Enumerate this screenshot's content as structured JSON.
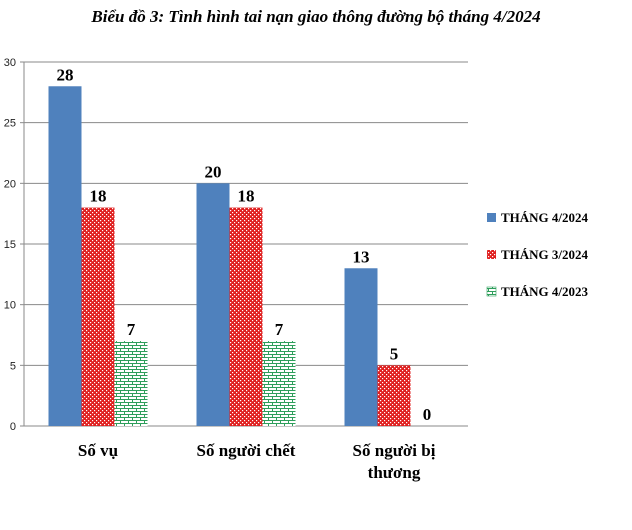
{
  "chart_data": {
    "type": "bar",
    "title": "Biểu đồ 3: Tình hình tai nạn giao thông đường bộ tháng 4/2024",
    "categories": [
      [
        "Số vụ"
      ],
      [
        "Số người chết"
      ],
      [
        "Số người bị",
        "thương"
      ]
    ],
    "series": [
      {
        "name": "THÁNG 4/2024",
        "values": [
          28,
          20,
          13
        ],
        "color": "#4F81BD",
        "pattern": "solid"
      },
      {
        "name": "THÁNG 3/2024",
        "values": [
          18,
          18,
          5
        ],
        "color": "#E02020",
        "pattern": "dots"
      },
      {
        "name": "THÁNG 4/2023",
        "values": [
          7,
          7,
          0
        ],
        "color": "#2E9E5B",
        "pattern": "bricks"
      }
    ],
    "ylim": [
      0,
      30
    ],
    "yticks": [
      0,
      5,
      10,
      15,
      20,
      25,
      30
    ],
    "grid": true,
    "legend_position": "right"
  }
}
